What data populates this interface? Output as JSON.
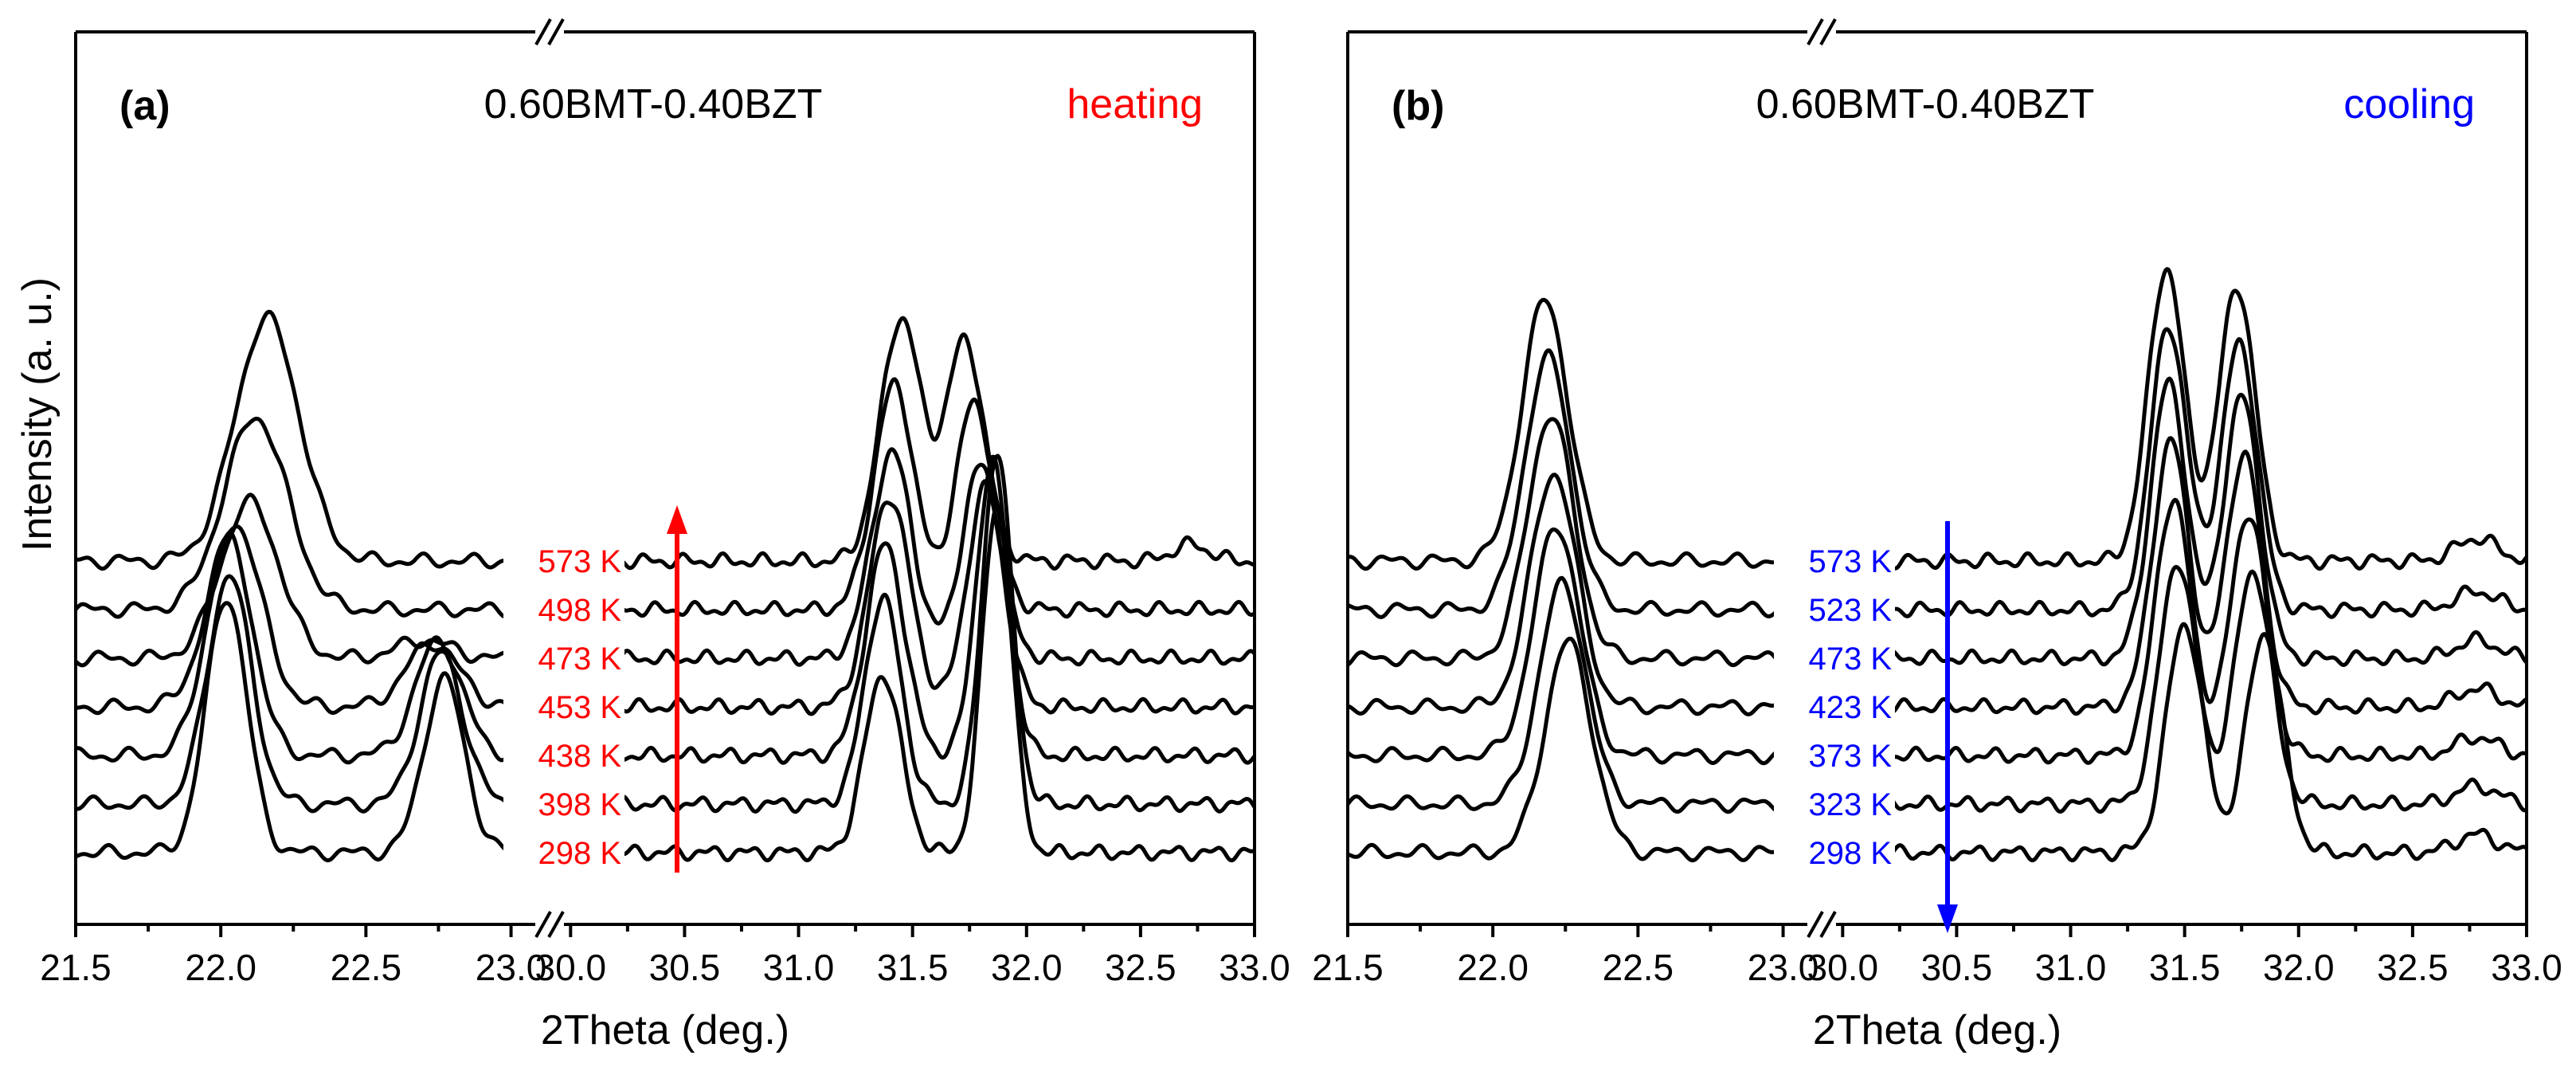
{
  "ylabel": "Intensity (a. u.)",
  "chart_data": [
    {
      "type": "line",
      "panel": "(a)",
      "title": "0.60BMT-0.40BZT",
      "mode": "heating",
      "mode_color": "#ff0000",
      "xlabel": "2Theta (deg.)",
      "ylabel": "Intensity (a. u.)",
      "broken_axis": true,
      "segments": [
        {
          "xlim": [
            21.5,
            23.1
          ],
          "ticks": [
            "21.5",
            "22.0",
            "22.5",
            "23.0"
          ]
        },
        {
          "xlim": [
            29.95,
            33.0
          ],
          "ticks": [
            "30.0",
            "30.5",
            "31.0",
            "31.5",
            "32.0",
            "32.5",
            "33.0"
          ]
        }
      ],
      "arrow": {
        "direction": "up",
        "at_x": 30.5
      },
      "series": [
        {
          "name": "298 K",
          "peaks": [
            {
              "x": 22.02,
              "h": 2.8,
              "w": 0.07
            },
            {
              "x": 22.77,
              "h": 1.9,
              "w": 0.07
            },
            {
              "x": 31.37,
              "h": 1.95,
              "w": 0.08
            },
            {
              "x": 31.87,
              "h": 3.8,
              "w": 0.065
            }
          ]
        },
        {
          "name": "398 K",
          "peaks": [
            {
              "x": 22.03,
              "h": 2.5,
              "w": 0.075
            },
            {
              "x": 22.76,
              "h": 1.65,
              "w": 0.075
            },
            {
              "x": 31.37,
              "h": 2.25,
              "w": 0.08
            },
            {
              "x": 31.87,
              "h": 3.85,
              "w": 0.065
            }
          ]
        },
        {
          "name": "438 K",
          "peaks": [
            {
              "x": 22.03,
              "h": 2.35,
              "w": 0.08
            },
            {
              "x": 22.75,
              "h": 1.25,
              "w": 0.08
            },
            {
              "x": 31.38,
              "h": 2.3,
              "w": 0.085
            },
            {
              "x": 31.85,
              "h": 3.2,
              "w": 0.07
            }
          ]
        },
        {
          "name": "453 K",
          "peaks": [
            {
              "x": 22.05,
              "h": 2.0,
              "w": 0.09
            },
            {
              "x": 22.73,
              "h": 0.7,
              "w": 0.09
            },
            {
              "x": 31.4,
              "h": 2.3,
              "w": 0.09
            },
            {
              "x": 31.82,
              "h": 2.4,
              "w": 0.08
            }
          ]
        },
        {
          "name": "473 K",
          "peaks": [
            {
              "x": 22.1,
              "h": 1.7,
              "w": 0.1
            },
            {
              "x": 22.7,
              "h": 0.2,
              "w": 0.09
            },
            {
              "x": 31.41,
              "h": 2.25,
              "w": 0.09
            },
            {
              "x": 31.8,
              "h": 2.1,
              "w": 0.085
            }
          ]
        },
        {
          "name": "498 K",
          "peaks": [
            {
              "x": 22.12,
              "h": 2.1,
              "w": 0.11
            },
            {
              "x": 31.42,
              "h": 2.45,
              "w": 0.09
            },
            {
              "x": 31.77,
              "h": 2.25,
              "w": 0.085
            }
          ]
        },
        {
          "name": "573 K",
          "peaks": [
            {
              "x": 22.16,
              "h": 2.65,
              "w": 0.11
            },
            {
              "x": 31.45,
              "h": 2.65,
              "w": 0.09
            },
            {
              "x": 31.73,
              "h": 2.4,
              "w": 0.085
            },
            {
              "x": 32.72,
              "h": 0.18,
              "w": 0.08
            }
          ]
        }
      ]
    },
    {
      "type": "line",
      "panel": "(b)",
      "title": "0.60BMT-0.40BZT",
      "mode": "cooling",
      "mode_color": "#0000ff",
      "xlabel": "2Theta (deg.)",
      "ylabel": "Intensity (a. u.)",
      "broken_axis": true,
      "segments": [
        {
          "xlim": [
            21.5,
            23.1
          ],
          "ticks": [
            "21.5",
            "22.0",
            "22.5",
            "23.0"
          ]
        },
        {
          "xlim": [
            29.95,
            33.0
          ],
          "ticks": [
            "30.0",
            "30.5",
            "31.0",
            "31.5",
            "32.0",
            "32.5",
            "33.0"
          ]
        }
      ],
      "arrow": {
        "direction": "down",
        "at_x": 30.5
      },
      "series": [
        {
          "name": "298 K",
          "peaks": [
            {
              "x": 22.26,
              "h": 2.3,
              "w": 0.08
            },
            {
              "x": 31.5,
              "h": 2.5,
              "w": 0.08
            },
            {
              "x": 31.85,
              "h": 2.4,
              "w": 0.08
            },
            {
              "x": 32.78,
              "h": 0.2,
              "w": 0.09
            }
          ]
        },
        {
          "name": "323 K",
          "peaks": [
            {
              "x": 22.24,
              "h": 2.4,
              "w": 0.08
            },
            {
              "x": 31.47,
              "h": 2.65,
              "w": 0.08
            },
            {
              "x": 31.8,
              "h": 2.55,
              "w": 0.08
            },
            {
              "x": 32.78,
              "h": 0.2,
              "w": 0.09
            }
          ]
        },
        {
          "name": "373 K",
          "peaks": [
            {
              "x": 22.22,
              "h": 2.5,
              "w": 0.08
            },
            {
              "x": 31.45,
              "h": 2.8,
              "w": 0.08
            },
            {
              "x": 31.78,
              "h": 2.65,
              "w": 0.08
            },
            {
              "x": 32.78,
              "h": 0.2,
              "w": 0.09
            }
          ]
        },
        {
          "name": "423 K",
          "peaks": [
            {
              "x": 22.21,
              "h": 2.55,
              "w": 0.08
            },
            {
              "x": 31.44,
              "h": 2.9,
              "w": 0.08
            },
            {
              "x": 31.76,
              "h": 2.75,
              "w": 0.08
            },
            {
              "x": 32.78,
              "h": 0.2,
              "w": 0.09
            }
          ]
        },
        {
          "name": "473 K",
          "peaks": [
            {
              "x": 22.2,
              "h": 2.65,
              "w": 0.08
            },
            {
              "x": 31.43,
              "h": 3.0,
              "w": 0.08
            },
            {
              "x": 31.75,
              "h": 2.85,
              "w": 0.08
            },
            {
              "x": 32.78,
              "h": 0.2,
              "w": 0.09
            }
          ]
        },
        {
          "name": "523 K",
          "peaks": [
            {
              "x": 22.19,
              "h": 2.75,
              "w": 0.08
            },
            {
              "x": 31.43,
              "h": 3.1,
              "w": 0.08
            },
            {
              "x": 31.74,
              "h": 2.9,
              "w": 0.08
            },
            {
              "x": 32.78,
              "h": 0.2,
              "w": 0.09
            }
          ]
        },
        {
          "name": "573 K",
          "peaks": [
            {
              "x": 22.18,
              "h": 2.85,
              "w": 0.08
            },
            {
              "x": 31.42,
              "h": 3.2,
              "w": 0.08
            },
            {
              "x": 31.73,
              "h": 3.0,
              "w": 0.08
            },
            {
              "x": 32.78,
              "h": 0.25,
              "w": 0.09
            }
          ]
        }
      ]
    }
  ]
}
